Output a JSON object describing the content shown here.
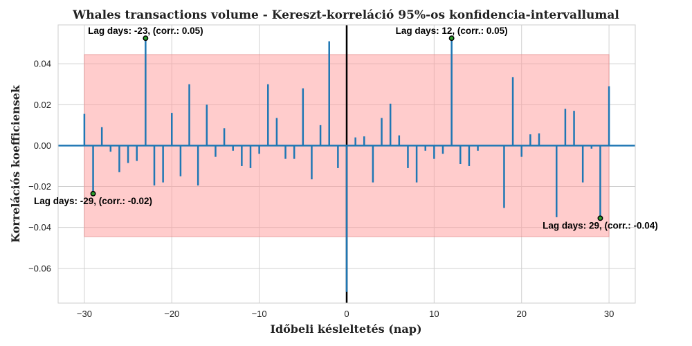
{
  "chart_data": {
    "type": "bar",
    "title": "Whales transactions volume - Kereszt-korreláció 95%-os konfidencia-intervallumal",
    "xlabel": "Időbeli késleltetés (nap)",
    "ylabel": "Korrelációs koefficiensek",
    "xlim": [
      -33,
      33
    ],
    "ylim": [
      -0.077,
      0.059
    ],
    "xticks": [
      -30,
      -20,
      -10,
      0,
      10,
      20,
      30
    ],
    "xtick_labels": [
      "−30",
      "−20",
      "−10",
      "0",
      "10",
      "20",
      "30"
    ],
    "yticks": [
      -0.06,
      -0.04,
      -0.02,
      0.0,
      0.02,
      0.04
    ],
    "ytick_labels": [
      "−0.06",
      "−0.04",
      "−0.02",
      "0.00",
      "0.02",
      "0.04"
    ],
    "grid": true,
    "confidence_band": {
      "lower": -0.0445,
      "upper": 0.0445,
      "x_from": -30,
      "x_to": 30,
      "color": "#ff9999"
    },
    "series_color": "#1f77b4",
    "x": [
      -30,
      -29,
      -28,
      -27,
      -26,
      -25,
      -24,
      -23,
      -22,
      -21,
      -20,
      -19,
      -18,
      -17,
      -16,
      -15,
      -14,
      -13,
      -12,
      -11,
      -10,
      -9,
      -8,
      -7,
      -6,
      -5,
      -4,
      -3,
      -2,
      -1,
      0,
      1,
      2,
      3,
      4,
      5,
      6,
      7,
      8,
      9,
      10,
      11,
      12,
      13,
      14,
      15,
      16,
      17,
      18,
      19,
      20,
      21,
      22,
      23,
      24,
      25,
      26,
      27,
      28,
      29,
      30
    ],
    "values": [
      0.0155,
      -0.0235,
      0.009,
      -0.003,
      -0.013,
      -0.0085,
      -0.0075,
      0.0525,
      -0.0195,
      -0.018,
      0.016,
      -0.015,
      0.03,
      -0.0195,
      0.02,
      -0.0055,
      0.0085,
      -0.0025,
      -0.01,
      -0.011,
      -0.004,
      0.03,
      0.0135,
      -0.0065,
      -0.0065,
      0.028,
      -0.0165,
      0.01,
      0.051,
      -0.011,
      -0.0715,
      0.004,
      0.0045,
      -0.018,
      0.0135,
      0.0205,
      0.005,
      -0.011,
      -0.018,
      -0.0025,
      -0.0065,
      -0.004,
      0.0525,
      -0.009,
      -0.01,
      -0.0025,
      0.0,
      0.0,
      -0.0305,
      0.0335,
      -0.0055,
      0.0055,
      0.006,
      0.0,
      -0.035,
      0.018,
      0.017,
      -0.018,
      -0.0015,
      -0.0355,
      0.029
    ],
    "annotations": [
      {
        "lag": -23,
        "value": 0.0525,
        "text": "Lag days: -23, (corr.: 0.05)"
      },
      {
        "lag": 12,
        "value": 0.0525,
        "text": "Lag days: 12, (corr.: 0.05)"
      },
      {
        "lag": -29,
        "value": -0.0235,
        "text": "Lag days: -29, (corr.: -0.02)"
      },
      {
        "lag": 29,
        "value": -0.0355,
        "text": "Lag days: 29, (corr.: -0.04)"
      }
    ]
  }
}
